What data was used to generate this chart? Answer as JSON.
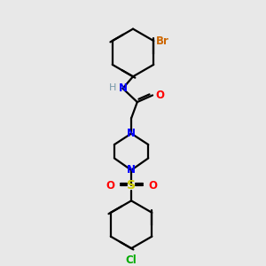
{
  "bg_color": "#e8e8e8",
  "line_color": "#000000",
  "bond_width": 1.6,
  "colors": {
    "N": "#0000ff",
    "O": "#ff0000",
    "S": "#cccc00",
    "Br": "#cc6600",
    "Cl": "#00aa00",
    "NH_H": "#7799aa",
    "C": "#000000"
  },
  "figsize": [
    3.0,
    3.0
  ],
  "dpi": 100
}
